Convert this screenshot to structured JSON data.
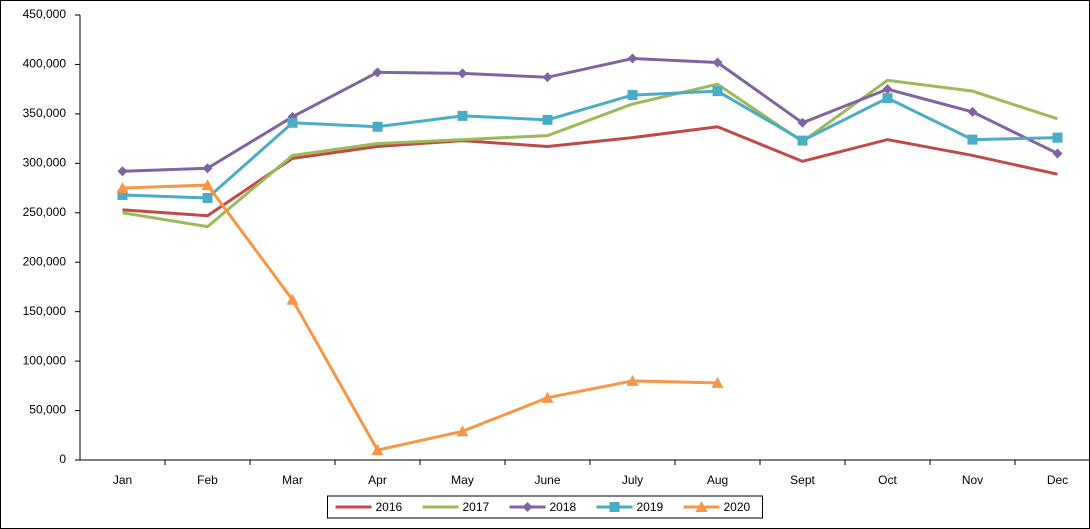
{
  "chart_data": {
    "type": "line",
    "categories": [
      "Jan",
      "Feb",
      "Mar",
      "Apr",
      "May",
      "June",
      "July",
      "Aug",
      "Sept",
      "Oct",
      "Nov",
      "Dec"
    ],
    "series": [
      {
        "name": "2016",
        "color": "#be4b48",
        "marker": "none",
        "values": [
          253000,
          247000,
          305000,
          317000,
          323000,
          317000,
          326000,
          337000,
          302000,
          324000,
          308000,
          289000
        ]
      },
      {
        "name": "2017",
        "color": "#9bbb59",
        "marker": "none",
        "values": [
          250000,
          236000,
          308000,
          320000,
          324000,
          328000,
          360000,
          380000,
          322000,
          384000,
          373000,
          345000
        ]
      },
      {
        "name": "2018",
        "color": "#8064a2",
        "marker": "diamond",
        "values": [
          292000,
          295000,
          347000,
          392000,
          391000,
          387000,
          406000,
          402000,
          341000,
          375000,
          352000,
          310000
        ]
      },
      {
        "name": "2019",
        "color": "#4bacc6",
        "marker": "square",
        "values": [
          268000,
          265000,
          341000,
          337000,
          348000,
          344000,
          369000,
          373000,
          323000,
          366000,
          324000,
          326000
        ]
      },
      {
        "name": "2020",
        "color": "#f79646",
        "marker": "triangle",
        "values": [
          275000,
          278000,
          162000,
          10000,
          29000,
          63000,
          80000,
          78000,
          null,
          null,
          null,
          null
        ]
      }
    ],
    "ylim": [
      0,
      450000
    ],
    "yticks": [
      0,
      {
        "value": 50000,
        "label": "50,000"
      },
      {
        "value": 100000,
        "label": "100,000"
      },
      {
        "value": 150000,
        "label": "150,000"
      },
      {
        "value": 200000,
        "label": "200,000"
      },
      {
        "value": 250000,
        "label": "250,000"
      },
      {
        "value": 300000,
        "label": "300,000"
      },
      {
        "value": 350000,
        "label": "350,000"
      },
      {
        "value": 400000,
        "label": "400,000"
      },
      {
        "value": 450000,
        "label": "450,000"
      }
    ],
    "grid": false,
    "legend": "bottom"
  }
}
